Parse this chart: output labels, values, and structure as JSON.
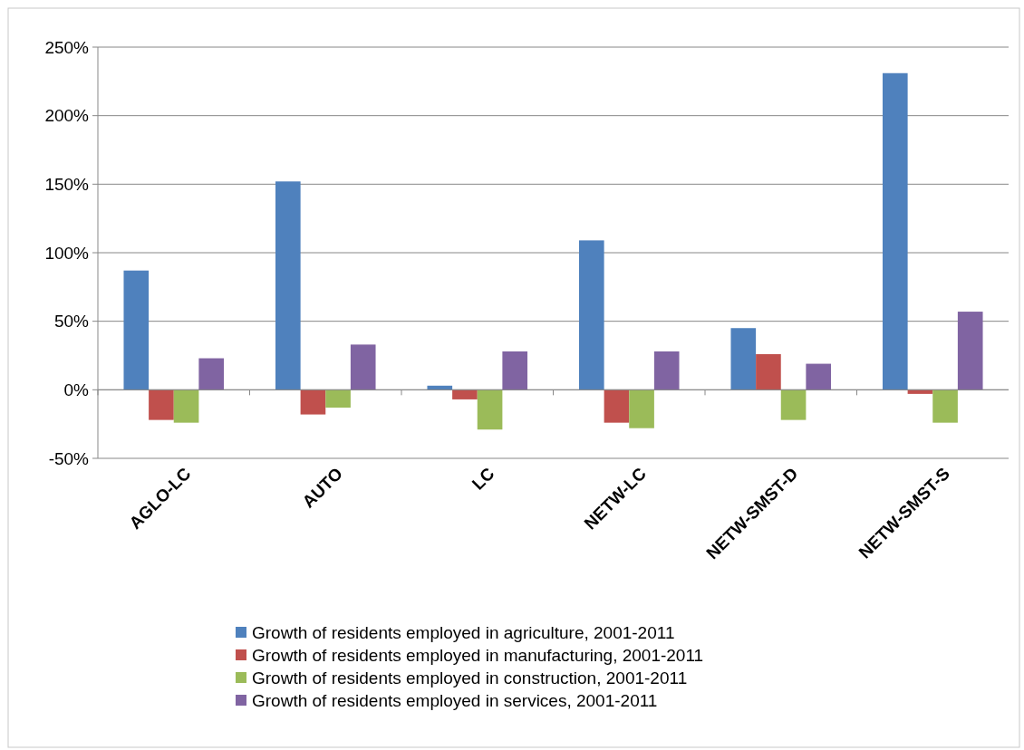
{
  "chart_data": {
    "type": "bar",
    "categories": [
      "AGLO-LC",
      "AUTO",
      "LC",
      "NETW-LC",
      "NETW-SMST-D",
      "NETW-SMST-S"
    ],
    "series": [
      {
        "name": "Growth of residents employed in agriculture, 2001-2011",
        "color": "#4f81bd",
        "values": [
          87,
          152,
          3,
          109,
          45,
          231
        ]
      },
      {
        "name": "Growth of residents employed in manufacturing, 2001-2011",
        "color": "#c0504d",
        "values": [
          -22,
          -18,
          -7,
          -24,
          26,
          -3
        ]
      },
      {
        "name": "Growth of residents employed in construction, 2001-2011",
        "color": "#9bbb59",
        "values": [
          -24,
          -13,
          -29,
          -28,
          -22,
          -24
        ]
      },
      {
        "name": "Growth of residents employed in services, 2001-2011",
        "color": "#8064a2",
        "values": [
          23,
          33,
          28,
          28,
          19,
          57
        ]
      }
    ],
    "ylim": [
      -50,
      250
    ],
    "yticks": [
      {
        "value": -50,
        "label": "-50%"
      },
      {
        "value": 0,
        "label": "0%"
      },
      {
        "value": 50,
        "label": "50%"
      },
      {
        "value": 100,
        "label": "100%"
      },
      {
        "value": 150,
        "label": "150%"
      },
      {
        "value": 200,
        "label": "200%"
      },
      {
        "value": 250,
        "label": "250%"
      }
    ],
    "grid": "y",
    "legend": "bottom"
  }
}
